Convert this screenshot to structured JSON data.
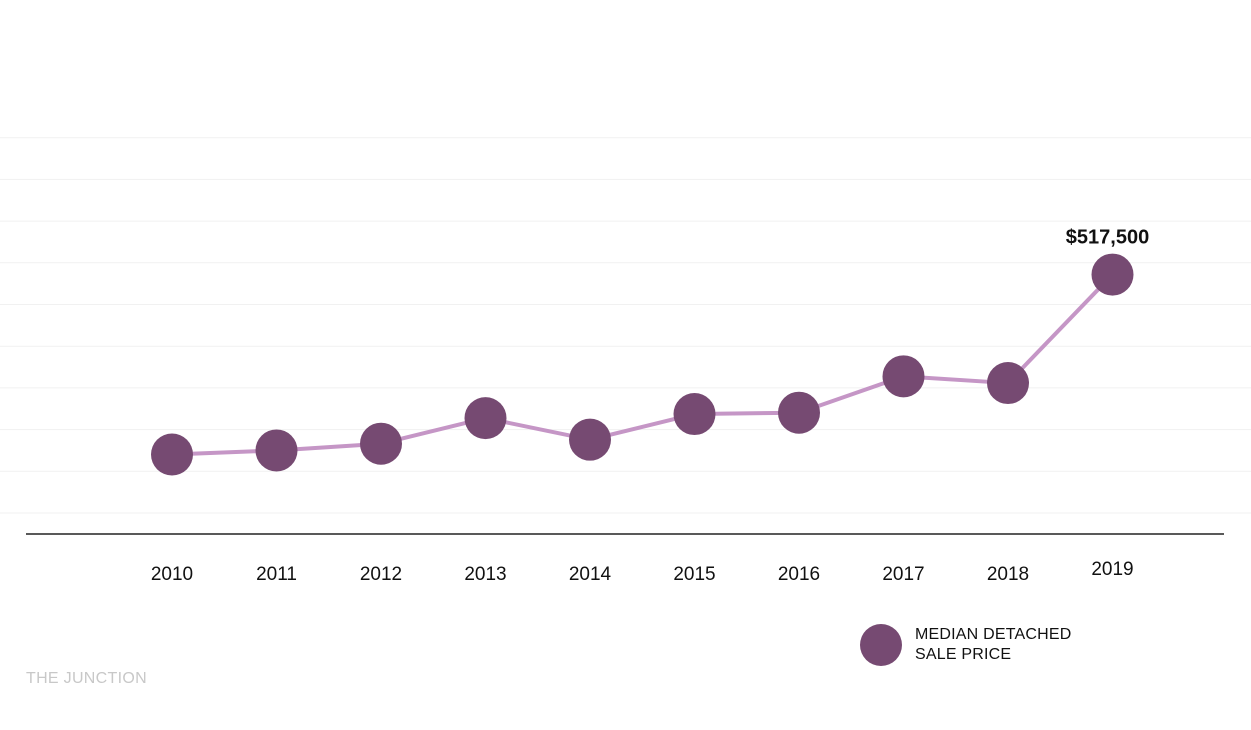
{
  "chart_data": {
    "type": "line",
    "categories": [
      "2010",
      "2011",
      "2012",
      "2013",
      "2014",
      "2015",
      "2016",
      "2017",
      "2018",
      "2019"
    ],
    "series": [
      {
        "name": "MEDIAN DETACHED SALE PRICE",
        "values": [
          384000,
          387000,
          392000,
          411000,
          395000,
          414000,
          415000,
          442000,
          437000,
          517500
        ]
      }
    ],
    "annotations": [
      {
        "category": "2019",
        "text": "$517,500"
      }
    ],
    "ylim": [
      325000,
      650000
    ],
    "grid": true,
    "legend_position": "bottom-right",
    "colors": {
      "line": "#c596c6",
      "marker": "#764a72",
      "grid": "#f1f1f1",
      "axis": "#222222"
    }
  },
  "legend": {
    "line1": "MEDIAN DETACHED",
    "line2": "SALE PRICE"
  },
  "source": {
    "text": "THE JUNCTION"
  }
}
